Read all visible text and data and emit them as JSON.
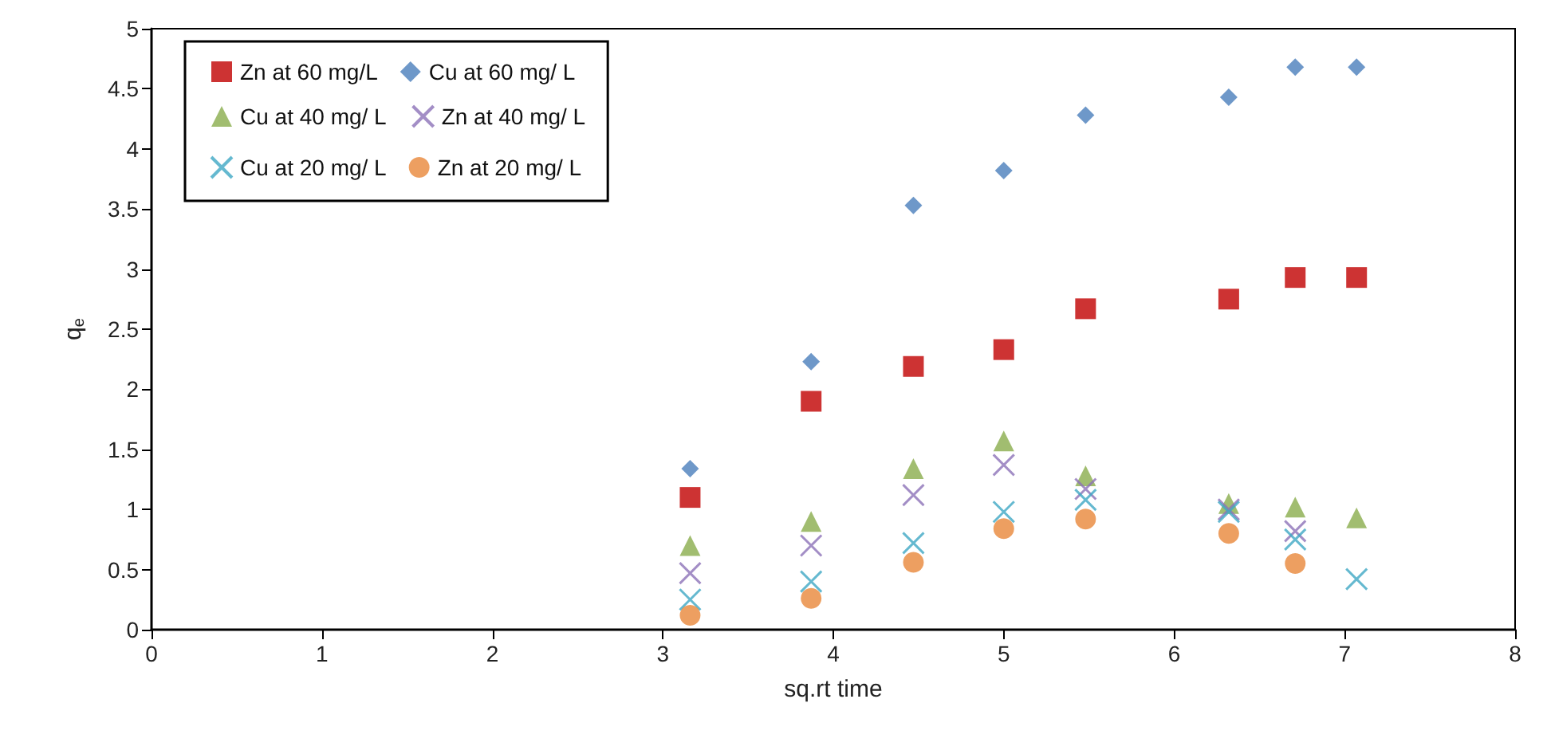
{
  "chart_data": {
    "type": "scatter",
    "xlabel": "sq.rt time",
    "ylabel": "q$_{e}$",
    "x": [
      3.16,
      3.87,
      4.47,
      5,
      5.48,
      6.32,
      6.71,
      7.07
    ],
    "series": [
      {
        "name": "Zn at 60 mg/L",
        "color": "#c00000",
        "marker": "square",
        "values": [
          1.1,
          1.9,
          2.19,
          2.33,
          2.67,
          2.75,
          2.93,
          2.93
        ]
      },
      {
        "name": "Cu at 60 mg/ L",
        "color": "#4a7ebb",
        "marker": "diamond",
        "values": [
          1.34,
          2.23,
          3.53,
          3.82,
          4.28,
          4.43,
          4.68,
          4.68
        ]
      },
      {
        "name": "Cu at 40 mg/ L",
        "color": "#8aac4c",
        "marker": "triangle",
        "values": [
          0.7,
          0.9,
          1.34,
          1.57,
          1.28,
          1.05,
          1.02,
          0.93
        ]
      },
      {
        "name": "Zn at 40 mg/ L",
        "color": "#8c72b8",
        "marker": "cross",
        "values": [
          0.47,
          0.7,
          1.12,
          1.37,
          1.17,
          1.0,
          0.82,
          null
        ]
      },
      {
        "name": "Cu at 20 mg/ L",
        "color": "#3fa8c4",
        "marker": "cross",
        "values": [
          0.25,
          0.4,
          0.72,
          0.98,
          1.08,
          0.98,
          0.75,
          0.42
        ]
      },
      {
        "name": "Zn at 20 mg/ L",
        "color": "#e8873a",
        "marker": "circle",
        "values": [
          0.12,
          0.26,
          0.56,
          0.84,
          0.92,
          0.8,
          0.55,
          null
        ]
      }
    ],
    "xlim": [
      0,
      8
    ],
    "xticks": [
      0,
      1,
      2,
      3,
      4,
      5,
      6,
      7,
      8
    ],
    "ylim": [
      0,
      5
    ],
    "yticks": [
      0,
      0.5,
      1,
      1.5,
      2,
      2.5,
      3,
      3.5,
      4,
      4.5,
      5
    ],
    "grid": false,
    "legend": "top left"
  }
}
